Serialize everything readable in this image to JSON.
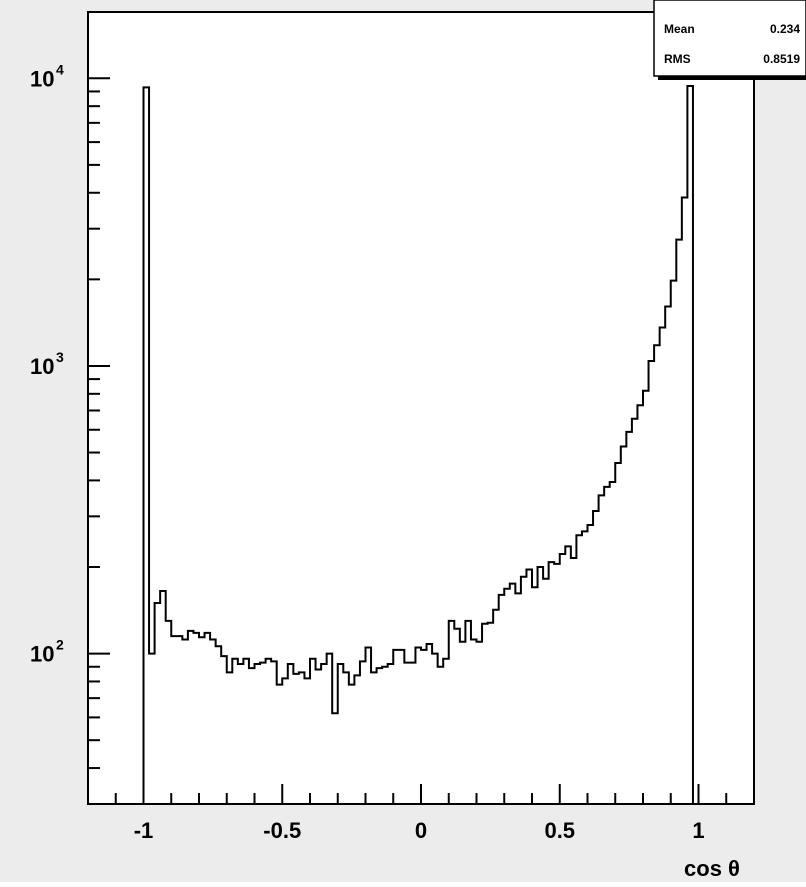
{
  "stats": {
    "rows": [
      {
        "label": "Mean",
        "value": "0.234"
      },
      {
        "label": "RMS",
        "value": "0.8519"
      }
    ]
  },
  "colors": {
    "background": "#ececec",
    "frame_fill": "#ffffff",
    "histogram_line": "#000000"
  },
  "chart_data": {
    "type": "histogram",
    "xlabel": "cos θ",
    "ylabel": "",
    "xlim": [
      -1.2,
      1.2
    ],
    "ylim": [
      30,
      17000
    ],
    "y_scale": "log",
    "grid": false,
    "x_ticks": [
      {
        "value": -1,
        "label": "-1"
      },
      {
        "value": -0.5,
        "label": "-0.5"
      },
      {
        "value": 0,
        "label": "0"
      },
      {
        "value": 0.5,
        "label": "0.5"
      },
      {
        "value": 1,
        "label": "1"
      }
    ],
    "y_ticks": [
      {
        "value": 100,
        "base": "10",
        "exp": "2"
      },
      {
        "value": 1000,
        "base": "10",
        "exp": "3"
      },
      {
        "value": 10000,
        "base": "10",
        "exp": "4"
      }
    ],
    "bin_edges_range": [
      -1.0,
      1.0
    ],
    "bin_width": 0.02,
    "values": [
      9300,
      100,
      150,
      165,
      130,
      115,
      115,
      112,
      120,
      118,
      114,
      118,
      112,
      106,
      98,
      86,
      96,
      92,
      96,
      89,
      92,
      93,
      96,
      94,
      78,
      82,
      92,
      85,
      86,
      82,
      96,
      88,
      92,
      100,
      62,
      92,
      86,
      78,
      84,
      94,
      105,
      86,
      89,
      90,
      92,
      103,
      103,
      93,
      93,
      105,
      103,
      108,
      100,
      90,
      96,
      130,
      122,
      110,
      130,
      112,
      110,
      127,
      128,
      142,
      160,
      168,
      175,
      162,
      185,
      196,
      170,
      200,
      182,
      208,
      205,
      222,
      236,
      215,
      258,
      266,
      280,
      313,
      355,
      380,
      395,
      460,
      525,
      590,
      655,
      730,
      820,
      1040,
      1180,
      1360,
      1610,
      1980,
      2750,
      3850,
      9400,
      30
    ]
  }
}
